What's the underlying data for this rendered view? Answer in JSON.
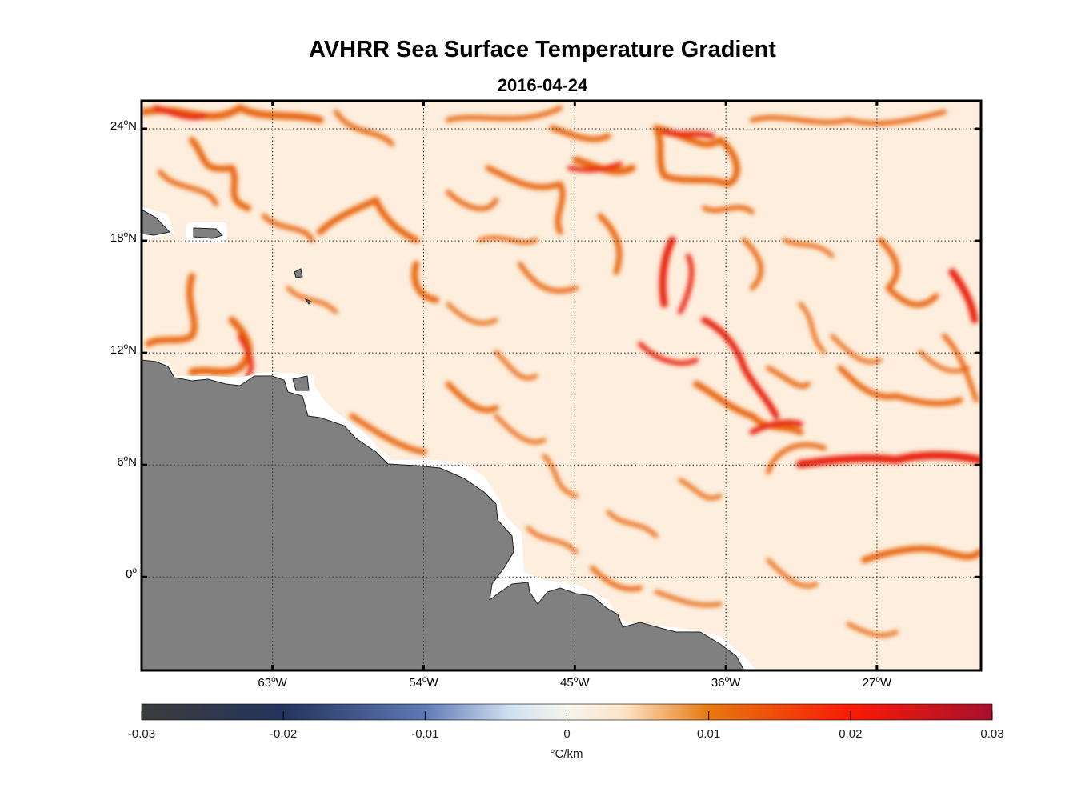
{
  "title": "AVHRR Sea Surface Temperature Gradient",
  "subtitle": "2016-04-24",
  "map": {
    "lon_range": [
      -70.8,
      -20.8
    ],
    "lat_range": [
      -5,
      25.5
    ],
    "land_color": "#808080",
    "coast_buffer_color": "#ffffff",
    "ocean_base_color": "#fdeedd",
    "front_color": "#e8650a",
    "strong_front_color": "#e8200a",
    "grid_style": "dotted",
    "lat_ticks": [
      {
        "value": 24,
        "deg": "24",
        "hemi": "N"
      },
      {
        "value": 18,
        "deg": "18",
        "hemi": "N"
      },
      {
        "value": 12,
        "deg": "12",
        "hemi": "N"
      },
      {
        "value": 6,
        "deg": "6",
        "hemi": "N"
      },
      {
        "value": 0,
        "deg": "0",
        "hemi": ""
      }
    ],
    "lon_ticks": [
      {
        "value": -63,
        "deg": "63",
        "hemi": "W"
      },
      {
        "value": -54,
        "deg": "54",
        "hemi": "W"
      },
      {
        "value": -45,
        "deg": "45",
        "hemi": "W"
      },
      {
        "value": -36,
        "deg": "36",
        "hemi": "W"
      },
      {
        "value": -27,
        "deg": "27",
        "hemi": "W"
      }
    ]
  },
  "colorbar": {
    "min": -0.03,
    "max": 0.03,
    "unit": "°C/km",
    "ticks": [
      "-0.03",
      "-0.02",
      "-0.01",
      "0",
      "0.01",
      "0.02",
      "0.03"
    ],
    "tick_values": [
      -0.03,
      -0.02,
      -0.01,
      0,
      0.01,
      0.02,
      0.03
    ],
    "stops": [
      {
        "value": -0.03,
        "color": "#3c3c3c"
      },
      {
        "value": -0.02,
        "color": "#23345e"
      },
      {
        "value": -0.01,
        "color": "#5f79b5"
      },
      {
        "value": -0.004,
        "color": "#cfe0f2"
      },
      {
        "value": 0,
        "color": "#f6f5ee"
      },
      {
        "value": 0.004,
        "color": "#fde4c8"
      },
      {
        "value": 0.01,
        "color": "#e67810"
      },
      {
        "value": 0.02,
        "color": "#fa1a05"
      },
      {
        "value": 0.03,
        "color": "#a8102e"
      }
    ]
  }
}
